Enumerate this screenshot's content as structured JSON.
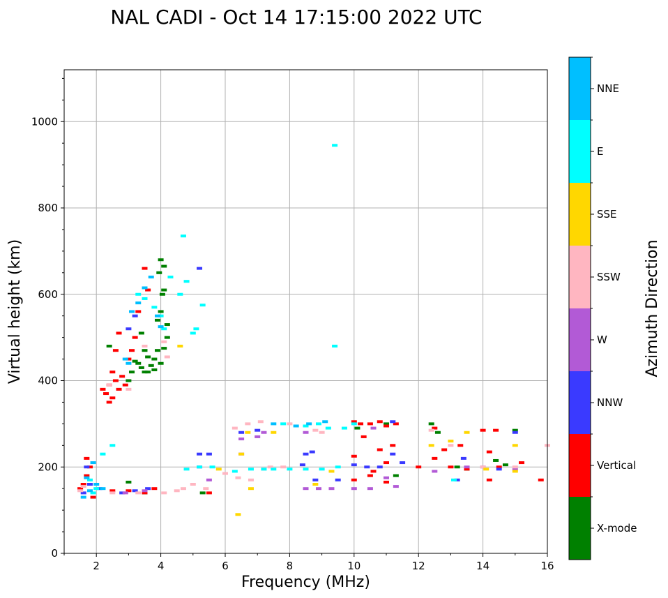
{
  "chart_data": {
    "type": "scatter",
    "title": "NAL CADI - Oct 14 17:15:00 2022 UTC",
    "xlabel": "Frequency (MHz)",
    "ylabel": "Virtual height (km)",
    "xlim": [
      1,
      16
    ],
    "ylim": [
      0,
      1120
    ],
    "x_ticks": [
      2,
      4,
      6,
      8,
      10,
      12,
      14,
      16
    ],
    "y_ticks": [
      0,
      200,
      400,
      600,
      800,
      1000
    ],
    "grid": true,
    "colorbar": {
      "label": "Azimuth Direction",
      "categories": [
        "X-mode",
        "Vertical",
        "NNW",
        "W",
        "SSW",
        "SSE",
        "E",
        "NNE"
      ],
      "colors": [
        "#008000",
        "#ff0000",
        "#3a3aff",
        "#b25ad6",
        "#ffb6c1",
        "#ffd700",
        "#00ffff",
        "#00bfff"
      ]
    },
    "series": [
      {
        "category": "X-mode",
        "points": [
          [
            3.3,
            440
          ],
          [
            3.4,
            430
          ],
          [
            3.5,
            420
          ],
          [
            3.6,
            455
          ],
          [
            3.7,
            435
          ],
          [
            3.8,
            450
          ],
          [
            3.9,
            470
          ],
          [
            4.0,
            440
          ],
          [
            3.6,
            420
          ],
          [
            3.8,
            425
          ],
          [
            4.1,
            475
          ],
          [
            4.2,
            500
          ],
          [
            3.9,
            540
          ],
          [
            4.0,
            560
          ],
          [
            4.05,
            600
          ],
          [
            3.95,
            650
          ],
          [
            4.1,
            665
          ],
          [
            4.0,
            680
          ],
          [
            4.1,
            610
          ],
          [
            4.2,
            530
          ],
          [
            3.4,
            510
          ],
          [
            3.5,
            470
          ],
          [
            2.4,
            480
          ],
          [
            3.0,
            400
          ],
          [
            3.1,
            420
          ],
          [
            3.2,
            445
          ],
          [
            5.3,
            140
          ],
          [
            12.4,
            300
          ],
          [
            12.6,
            280
          ],
          [
            13.2,
            200
          ],
          [
            13.5,
            195
          ],
          [
            14.4,
            215
          ],
          [
            14.7,
            205
          ],
          [
            15.0,
            285
          ],
          [
            10.1,
            290
          ],
          [
            11.0,
            300
          ],
          [
            11.3,
            180
          ],
          [
            3.0,
            165
          ],
          [
            3.5,
            140
          ]
        ]
      },
      {
        "category": "Vertical",
        "points": [
          [
            2.3,
            370
          ],
          [
            2.4,
            390
          ],
          [
            2.5,
            360
          ],
          [
            2.6,
            400
          ],
          [
            2.7,
            380
          ],
          [
            2.8,
            410
          ],
          [
            2.9,
            390
          ],
          [
            3.0,
            450
          ],
          [
            3.1,
            470
          ],
          [
            3.2,
            500
          ],
          [
            3.3,
            560
          ],
          [
            3.5,
            660
          ],
          [
            3.6,
            610
          ],
          [
            2.5,
            420
          ],
          [
            2.6,
            470
          ],
          [
            2.7,
            510
          ],
          [
            2.2,
            380
          ],
          [
            2.4,
            350
          ],
          [
            1.6,
            160
          ],
          [
            1.7,
            180
          ],
          [
            1.8,
            200
          ],
          [
            1.5,
            150
          ],
          [
            1.9,
            130
          ],
          [
            1.7,
            220
          ],
          [
            2.5,
            145
          ],
          [
            3.0,
            145
          ],
          [
            3.5,
            140
          ],
          [
            3.8,
            150
          ],
          [
            5.5,
            140
          ],
          [
            10.0,
            305
          ],
          [
            10.2,
            300
          ],
          [
            10.5,
            300
          ],
          [
            10.8,
            305
          ],
          [
            11.0,
            295
          ],
          [
            11.3,
            300
          ],
          [
            10.3,
            270
          ],
          [
            10.8,
            240
          ],
          [
            11.2,
            250
          ],
          [
            10.6,
            190
          ],
          [
            11.0,
            210
          ],
          [
            10.0,
            170
          ],
          [
            11.0,
            165
          ],
          [
            12.5,
            290
          ],
          [
            12.8,
            240
          ],
          [
            13.3,
            250
          ],
          [
            12.5,
            220
          ],
          [
            13.0,
            200
          ],
          [
            13.5,
            195
          ],
          [
            14.0,
            285
          ],
          [
            14.4,
            285
          ],
          [
            14.2,
            235
          ],
          [
            14.5,
            200
          ],
          [
            15.2,
            210
          ],
          [
            15.8,
            170
          ],
          [
            14.2,
            170
          ],
          [
            10.0,
            225
          ],
          [
            10.5,
            180
          ],
          [
            12.0,
            200
          ]
        ]
      },
      {
        "category": "NNW",
        "points": [
          [
            1.6,
            140
          ],
          [
            1.8,
            160
          ],
          [
            1.7,
            200
          ],
          [
            2.1,
            150
          ],
          [
            2.8,
            140
          ],
          [
            3.2,
            145
          ],
          [
            3.6,
            150
          ],
          [
            5.2,
            230
          ],
          [
            5.5,
            230
          ],
          [
            5.2,
            200
          ],
          [
            6.5,
            280
          ],
          [
            7.0,
            285
          ],
          [
            8.5,
            230
          ],
          [
            8.7,
            235
          ],
          [
            8.4,
            205
          ],
          [
            8.8,
            170
          ],
          [
            9.5,
            170
          ],
          [
            10.0,
            205
          ],
          [
            10.4,
            200
          ],
          [
            10.8,
            200
          ],
          [
            11.2,
            230
          ],
          [
            11.5,
            210
          ],
          [
            11.2,
            305
          ],
          [
            13.4,
            220
          ],
          [
            13.2,
            170
          ],
          [
            14.5,
            195
          ],
          [
            15.0,
            280
          ],
          [
            3.2,
            550
          ],
          [
            3.0,
            520
          ],
          [
            5.2,
            660
          ]
        ]
      },
      {
        "category": "W",
        "points": [
          [
            6.5,
            265
          ],
          [
            7.0,
            270
          ],
          [
            7.2,
            280
          ],
          [
            8.5,
            150
          ],
          [
            8.9,
            150
          ],
          [
            9.3,
            150
          ],
          [
            10.0,
            150
          ],
          [
            10.5,
            150
          ],
          [
            11.3,
            155
          ],
          [
            11.0,
            175
          ],
          [
            12.5,
            190
          ],
          [
            13.5,
            200
          ],
          [
            14.0,
            200
          ],
          [
            15.0,
            195
          ],
          [
            10.6,
            290
          ],
          [
            2.9,
            140
          ],
          [
            3.5,
            145
          ],
          [
            5.5,
            170
          ],
          [
            6.5,
            230
          ],
          [
            8.5,
            280
          ]
        ]
      },
      {
        "category": "SSW",
        "points": [
          [
            1.5,
            145
          ],
          [
            1.6,
            155
          ],
          [
            1.9,
            210
          ],
          [
            2.5,
            140
          ],
          [
            3.3,
            140
          ],
          [
            4.1,
            140
          ],
          [
            4.5,
            145
          ],
          [
            4.7,
            150
          ],
          [
            5.0,
            160
          ],
          [
            5.4,
            150
          ],
          [
            6.0,
            185
          ],
          [
            6.4,
            175
          ],
          [
            6.8,
            170
          ],
          [
            7.2,
            195
          ],
          [
            7.4,
            200
          ],
          [
            7.8,
            200
          ],
          [
            6.3,
            290
          ],
          [
            6.7,
            300
          ],
          [
            7.1,
            305
          ],
          [
            8.0,
            300
          ],
          [
            8.8,
            285
          ],
          [
            9.0,
            280
          ],
          [
            12.4,
            285
          ],
          [
            13.0,
            250
          ],
          [
            14.0,
            200
          ],
          [
            15.0,
            200
          ],
          [
            16.0,
            250
          ],
          [
            4.2,
            455
          ],
          [
            4.1,
            490
          ],
          [
            3.5,
            480
          ],
          [
            3.0,
            380
          ],
          [
            2.4,
            390
          ]
        ]
      },
      {
        "category": "SSE",
        "points": [
          [
            6.4,
            90
          ],
          [
            6.5,
            230
          ],
          [
            6.7,
            280
          ],
          [
            6.8,
            150
          ],
          [
            7.5,
            280
          ],
          [
            8.8,
            160
          ],
          [
            9.3,
            190
          ],
          [
            12.4,
            250
          ],
          [
            13.0,
            260
          ],
          [
            13.5,
            280
          ],
          [
            14.1,
            195
          ],
          [
            15.0,
            250
          ],
          [
            15.0,
            190
          ],
          [
            4.6,
            480
          ],
          [
            5.8,
            195
          ]
        ]
      },
      {
        "category": "E",
        "points": [
          [
            1.9,
            140
          ],
          [
            2.0,
            150
          ],
          [
            1.8,
            170
          ],
          [
            2.2,
            230
          ],
          [
            2.5,
            250
          ],
          [
            4.8,
            195
          ],
          [
            5.2,
            200
          ],
          [
            5.6,
            200
          ],
          [
            6.3,
            190
          ],
          [
            6.8,
            195
          ],
          [
            7.2,
            195
          ],
          [
            7.5,
            195
          ],
          [
            8.0,
            195
          ],
          [
            8.5,
            195
          ],
          [
            9.0,
            195
          ],
          [
            9.5,
            200
          ],
          [
            7.8,
            300
          ],
          [
            8.5,
            295
          ],
          [
            8.9,
            300
          ],
          [
            9.2,
            290
          ],
          [
            9.7,
            290
          ],
          [
            10.0,
            300
          ],
          [
            13.1,
            170
          ],
          [
            4.6,
            600
          ],
          [
            4.8,
            630
          ],
          [
            5.0,
            510
          ],
          [
            5.1,
            520
          ],
          [
            5.3,
            575
          ],
          [
            4.7,
            735
          ],
          [
            9.4,
            945
          ],
          [
            9.4,
            480
          ],
          [
            3.8,
            570
          ],
          [
            3.5,
            590
          ],
          [
            3.3,
            600
          ],
          [
            4.3,
            640
          ],
          [
            4.0,
            550
          ],
          [
            4.1,
            520
          ]
        ]
      },
      {
        "category": "NNE",
        "points": [
          [
            1.6,
            130
          ],
          [
            1.8,
            145
          ],
          [
            1.7,
            175
          ],
          [
            1.9,
            210
          ],
          [
            2.0,
            160
          ],
          [
            2.2,
            150
          ],
          [
            3.0,
            440
          ],
          [
            3.1,
            560
          ],
          [
            3.3,
            580
          ],
          [
            3.5,
            615
          ],
          [
            3.7,
            640
          ],
          [
            3.9,
            550
          ],
          [
            4.0,
            525
          ],
          [
            2.9,
            450
          ],
          [
            8.2,
            295
          ],
          [
            8.6,
            300
          ],
          [
            9.1,
            305
          ],
          [
            7.5,
            300
          ]
        ]
      }
    ]
  }
}
